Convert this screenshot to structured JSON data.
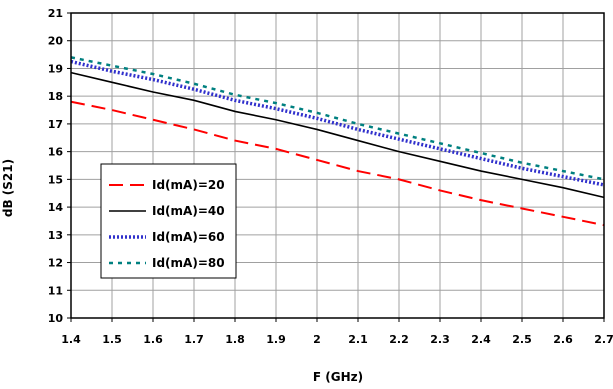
{
  "chart_data": {
    "type": "line",
    "title": "",
    "xlabel": "F (GHz)",
    "ylabel": "dB (S21)",
    "xlim": [
      1.4,
      2.7
    ],
    "ylim": [
      10,
      21
    ],
    "grid": true,
    "legend_position": "lower-left",
    "x_ticks": [
      "1.4",
      "1.5",
      "1.6",
      "1.7",
      "1.8",
      "1.9",
      "2",
      "2.1",
      "2.2",
      "2.3",
      "2.4",
      "2.5",
      "2.6",
      "2.7"
    ],
    "y_ticks": [
      "10",
      "11",
      "12",
      "13",
      "14",
      "15",
      "16",
      "17",
      "18",
      "19",
      "20",
      "21"
    ],
    "x": [
      1.4,
      1.5,
      1.6,
      1.7,
      1.8,
      1.9,
      2.0,
      2.1,
      2.2,
      2.3,
      2.4,
      2.5,
      2.6,
      2.7
    ],
    "series": [
      {
        "name": "Id(mA)=20",
        "color": "#ff0000",
        "dash": "dashed",
        "values": [
          17.8,
          17.5,
          17.15,
          16.8,
          16.4,
          16.1,
          15.7,
          15.3,
          15.0,
          14.6,
          14.25,
          13.95,
          13.65,
          13.35
        ]
      },
      {
        "name": "Id(mA)=40",
        "color": "#000000",
        "dash": "solid",
        "values": [
          18.85,
          18.5,
          18.15,
          17.85,
          17.45,
          17.15,
          16.8,
          16.4,
          16.0,
          15.65,
          15.3,
          15.0,
          14.7,
          14.35
        ]
      },
      {
        "name": "Id(mA)=60",
        "color": "#3030cc",
        "dash": "dotted",
        "values": [
          19.25,
          18.9,
          18.6,
          18.25,
          17.85,
          17.55,
          17.2,
          16.8,
          16.45,
          16.1,
          15.75,
          15.4,
          15.1,
          14.8
        ]
      },
      {
        "name": "Id(mA)=80",
        "color": "#008080",
        "dash": "short-dash",
        "values": [
          19.4,
          19.1,
          18.8,
          18.45,
          18.05,
          17.75,
          17.4,
          17.0,
          16.65,
          16.3,
          15.95,
          15.6,
          15.3,
          15.0
        ]
      }
    ]
  }
}
